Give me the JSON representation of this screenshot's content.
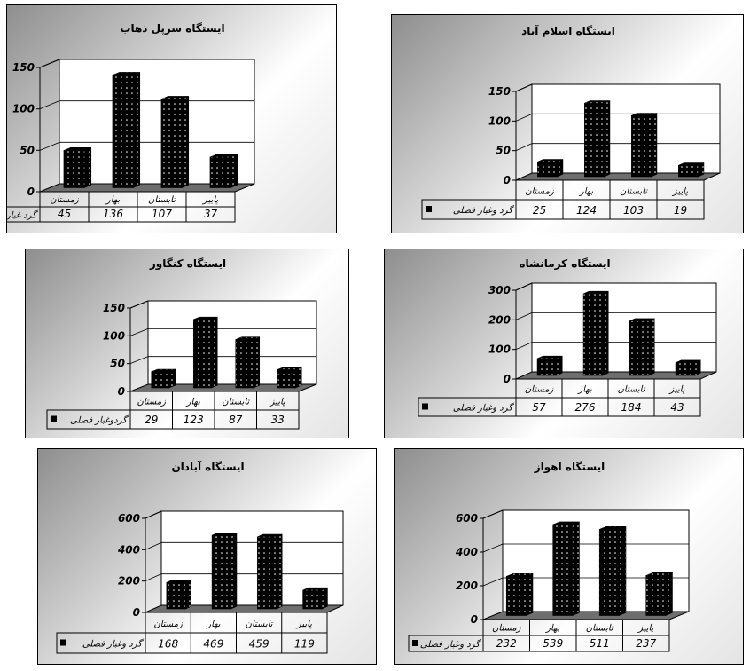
{
  "chart_data": [
    {
      "type": "bar",
      "title": "ایستگاه سرپل ذهاب",
      "categories": [
        "زمستان",
        "بهار",
        "تابستان",
        "پاییز"
      ],
      "series": [
        {
          "name": "گرد غبار فصلی",
          "values": [
            45,
            136,
            107,
            37
          ]
        }
      ],
      "yticks": [
        0,
        50,
        100,
        150
      ],
      "ylim": [
        0,
        150
      ],
      "grid": true,
      "legend": "data-table-left",
      "bar_color": "#000000"
    },
    {
      "type": "bar",
      "title": "ایستگاه اسلام آباد",
      "categories": [
        "زمستان",
        "بهار",
        "تابستان",
        "پاییز"
      ],
      "series": [
        {
          "name": "گرد وغبار فصلی",
          "values": [
            25,
            124,
            103,
            19
          ]
        }
      ],
      "yticks": [
        0,
        50,
        100,
        150
      ],
      "ylim": [
        0,
        150
      ],
      "grid": true,
      "legend": "data-table-left",
      "bar_color": "#000000"
    },
    {
      "type": "bar",
      "title": "ایستگاه کنگاور",
      "categories": [
        "زمستان",
        "بهار",
        "تابستان",
        "پاییز"
      ],
      "series": [
        {
          "name": "گردوغبار فصلی",
          "values": [
            29,
            123,
            87,
            33
          ]
        }
      ],
      "yticks": [
        0,
        50,
        100,
        150
      ],
      "ylim": [
        0,
        150
      ],
      "grid": true,
      "legend": "data-table-left",
      "bar_color": "#000000"
    },
    {
      "type": "bar",
      "title": "ایستگاه کرمانشاه",
      "categories": [
        "زمستان",
        "بهار",
        "تابستان",
        "پاییز"
      ],
      "series": [
        {
          "name": "گرد وغبار فصلی",
          "values": [
            57,
            276,
            184,
            43
          ]
        }
      ],
      "yticks": [
        0,
        100,
        200,
        300
      ],
      "ylim": [
        0,
        300
      ],
      "grid": true,
      "legend": "data-table-left",
      "bar_color": "#000000"
    },
    {
      "type": "bar",
      "title": "ایستگاه آبادان",
      "categories": [
        "زمستان",
        "بهار",
        "تابستان",
        "پاییز"
      ],
      "series": [
        {
          "name": "گرد وغبار فصلی",
          "values": [
            168,
            469,
            459,
            119
          ]
        }
      ],
      "yticks": [
        0,
        200,
        400,
        600
      ],
      "ylim": [
        0,
        600
      ],
      "grid": true,
      "legend": "data-table-left",
      "bar_color": "#000000"
    },
    {
      "type": "bar",
      "title": "ایستگاه اهواز",
      "categories": [
        "زمستان",
        "بهار",
        "تابستان",
        "پاییز"
      ],
      "series": [
        {
          "name": "گرد وغبار فصلی",
          "values": [
            232,
            539,
            511,
            237
          ]
        }
      ],
      "yticks": [
        0,
        200,
        400,
        600
      ],
      "ylim": [
        0,
        600
      ],
      "grid": true,
      "legend": "data-table-left",
      "bar_color": "#000000"
    }
  ]
}
